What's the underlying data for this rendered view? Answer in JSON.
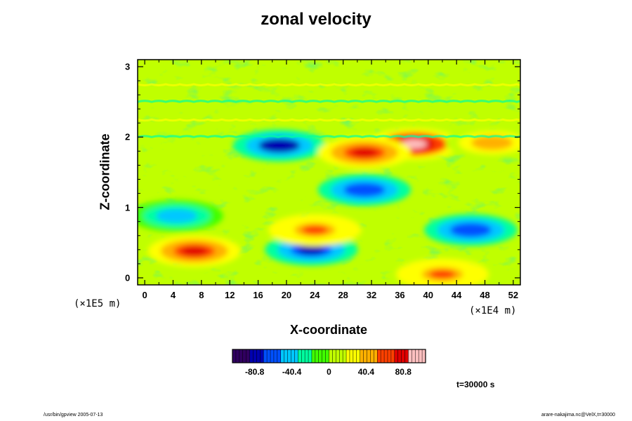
{
  "chart_data": {
    "type": "heatmap",
    "title": "zonal velocity",
    "xlabel": "X-coordinate",
    "ylabel": "Z-coordinate",
    "x_unit": "(×1E4 m)",
    "y_unit": "(×1E5 m)",
    "x_ticks": [
      "0",
      "4",
      "8",
      "12",
      "16",
      "20",
      "24",
      "28",
      "32",
      "36",
      "40",
      "44",
      "48",
      "52"
    ],
    "y_ticks": [
      "0",
      "1",
      "2",
      "3"
    ],
    "xlim": [
      -1,
      53
    ],
    "ylim": [
      -0.1,
      3.1
    ],
    "colorbar": {
      "ticks": [
        "-80.8",
        "-40.4",
        "0",
        "40.4",
        "80.8"
      ],
      "tick_values": [
        -80.8,
        -40.4,
        0,
        40.4,
        80.8
      ],
      "range": [
        -105,
        105
      ]
    },
    "time_label": "t=30000 s",
    "colors": [
      "#300060",
      "#0000b0",
      "#0050ff",
      "#00c8ff",
      "#00ffa0",
      "#40ff00",
      "#c0ff00",
      "#ffff00",
      "#ffb000",
      "#ff4000",
      "#e00000",
      "#ffc0c0"
    ],
    "features": [
      {
        "x": 19,
        "z": 1.88,
        "u": -85
      },
      {
        "x": 23.5,
        "z": 0.4,
        "u": -80
      },
      {
        "x": 31,
        "z": 1.25,
        "u": -70
      },
      {
        "x": 46,
        "z": 0.68,
        "u": -65
      },
      {
        "x": 4.5,
        "z": 0.88,
        "u": -45
      },
      {
        "x": 38,
        "z": 1.9,
        "u": 98
      },
      {
        "x": 31,
        "z": 1.78,
        "u": 72
      },
      {
        "x": 7,
        "z": 0.38,
        "u": 80
      },
      {
        "x": 24,
        "z": 0.68,
        "u": 55
      },
      {
        "x": 42,
        "z": 0.05,
        "u": 55
      },
      {
        "x": 49,
        "z": 1.92,
        "u": 45
      }
    ]
  },
  "footer": {
    "left": "/usr/bin/gpview 2005-07-13",
    "right": "arare-nakajima.nc@VelX,t=30000"
  }
}
